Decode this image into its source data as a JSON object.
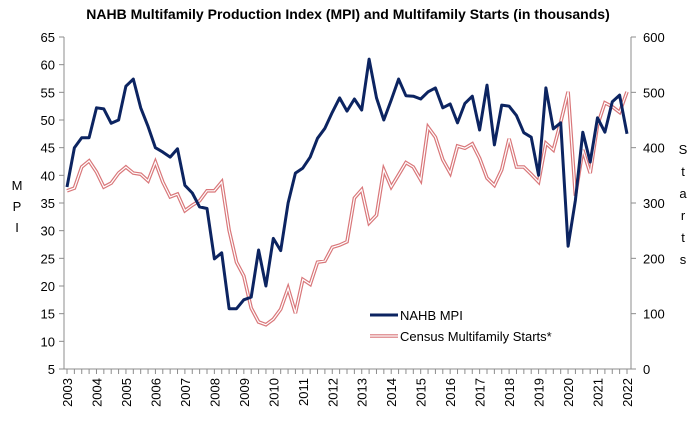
{
  "chart_data": {
    "type": "line",
    "title": "NAHB Multifamily Production Index (MPI) and Multifamily Starts (in thousands)",
    "xlabel": "",
    "ylabel_left": "MPI",
    "ylabel_right": "Starts",
    "y_left": {
      "min": 5,
      "max": 65,
      "ticks": [
        5,
        10,
        15,
        20,
        25,
        30,
        35,
        40,
        45,
        50,
        55,
        60,
        65
      ]
    },
    "y_right": {
      "min": 0,
      "max": 600,
      "ticks": [
        0,
        100,
        200,
        300,
        400,
        500,
        600
      ]
    },
    "x_tick_labels": [
      "2003",
      "2004",
      "2005",
      "2006",
      "2007",
      "2008",
      "2009",
      "2010",
      "2011",
      "2012",
      "2013",
      "2014",
      "2015",
      "2016",
      "2017",
      "2018",
      "2019",
      "2020",
      "2021",
      "2022"
    ],
    "x_frequency": "quarterly",
    "x_start": "2003Q1",
    "x_end": "2022Q1",
    "grid": false,
    "legend": {
      "placement": "bottom-right",
      "entries": [
        "NAHB MPI",
        "Census Multifamily Starts*"
      ]
    },
    "series": [
      {
        "name": "NAHB MPI",
        "axis": "left",
        "color": "#0c2461",
        "values": [
          37.9,
          45,
          46.8,
          46.8,
          52.2,
          52,
          49.4,
          50,
          56.1,
          57.4,
          52.2,
          48.8,
          45,
          44.2,
          43.3,
          44.8,
          38.2,
          36.8,
          34.3,
          34,
          24.9,
          26,
          15.9,
          15.9,
          17.5,
          18,
          26.5,
          20,
          28.6,
          26.4,
          35,
          40.4,
          41.3,
          43.3,
          46.7,
          48.5,
          51.4,
          54,
          51.6,
          53.8,
          51.8,
          61,
          54,
          50,
          53.6,
          57.4,
          54.4,
          54.3,
          53.8,
          55.1,
          55.8,
          52.2,
          52.9,
          49.5,
          53,
          54.3,
          48.2,
          56.3,
          45.5,
          52.7,
          52.5,
          50.8,
          47.7,
          46.9,
          40,
          55.8,
          48.4,
          49.5,
          27.2,
          35.5,
          47.8,
          42.4,
          50.4,
          47.8,
          53.3,
          54.5,
          47.5
        ]
      },
      {
        "name": "Census Multifamily Starts*",
        "axis": "right",
        "color": "#d9777a",
        "values": [
          322,
          327,
          365,
          376,
          356,
          329,
          336,
          354,
          365,
          354,
          352,
          340,
          374,
          338,
          311,
          316,
          286,
          296,
          304,
          322,
          322,
          338,
          251,
          193,
          168,
          110,
          85,
          80,
          90,
          108,
          146,
          101,
          162,
          153,
          193,
          195,
          220,
          224,
          230,
          309,
          324,
          264,
          278,
          360,
          329,
          351,
          373,
          365,
          342,
          437,
          419,
          378,
          354,
          403,
          399,
          407,
          381,
          345,
          332,
          360,
          416,
          365,
          365,
          352,
          338,
          408,
          396,
          446,
          501,
          313,
          396,
          354,
          441,
          481,
          474,
          464,
          501
        ]
      }
    ]
  }
}
